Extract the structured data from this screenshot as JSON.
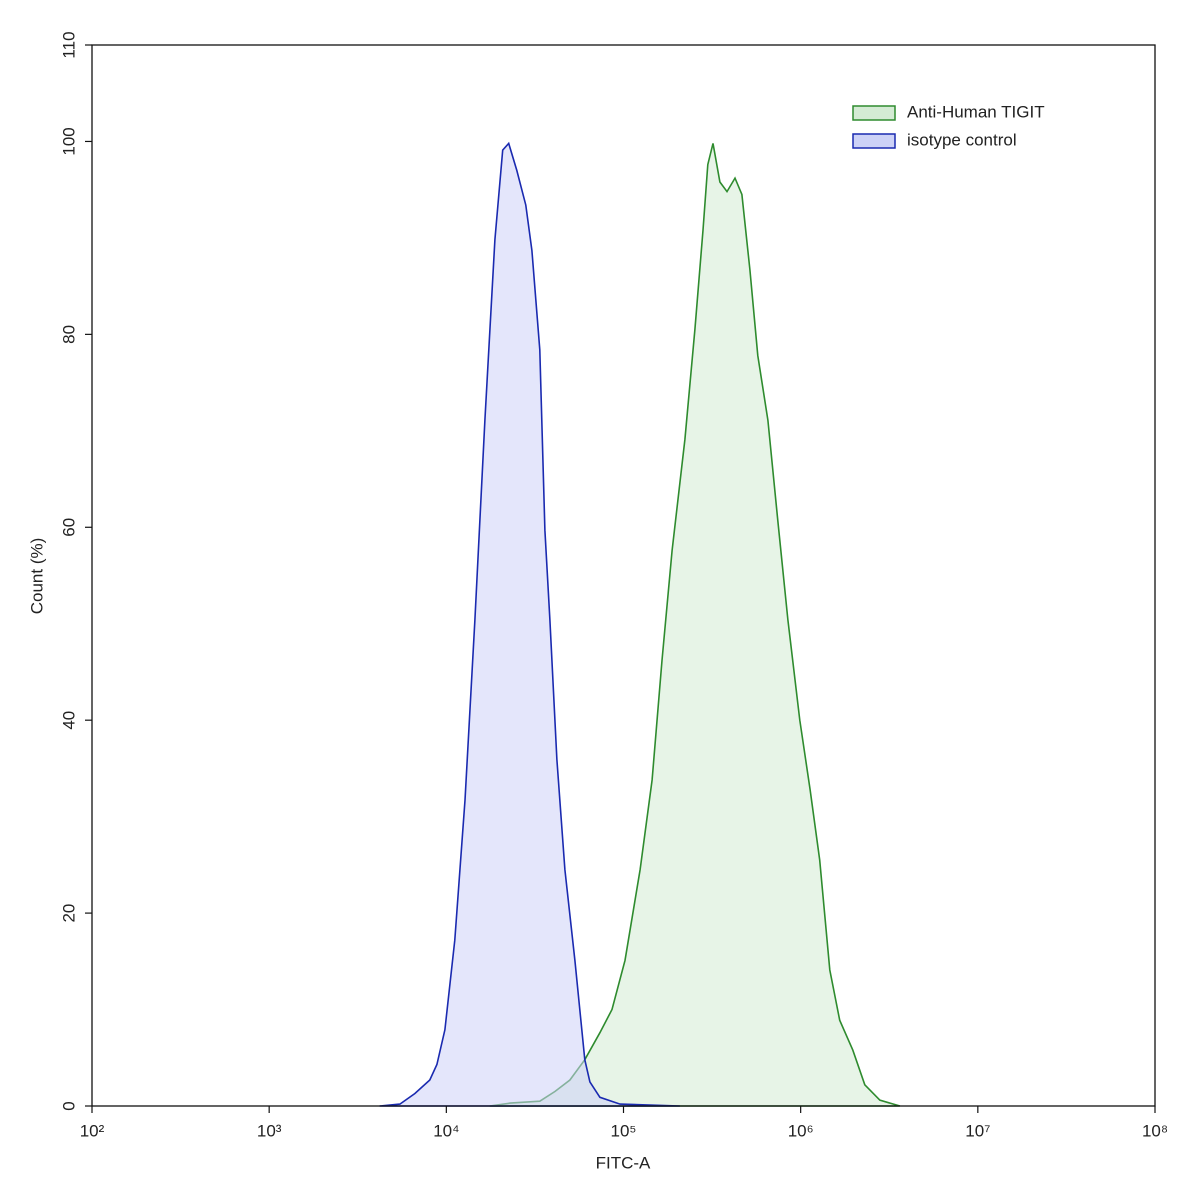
{
  "chart_data": {
    "type": "histogram-line",
    "x_label": "FITC-A",
    "y_label": "Count  (%)",
    "xscale": "log",
    "xlim": [
      100,
      100000000
    ],
    "ylim": [
      0,
      110
    ],
    "xticks": [
      {
        "value": 100,
        "label": "10²"
      },
      {
        "value": 1000,
        "label": "10³"
      },
      {
        "value": 10000,
        "label": "10⁴"
      },
      {
        "value": 100000,
        "label": "10⁵"
      },
      {
        "value": 1000000,
        "label": "10⁶"
      },
      {
        "value": 10000000,
        "label": "10⁷"
      },
      {
        "value": 100000000,
        "label": "10⁸"
      }
    ],
    "yticks": [
      0,
      20,
      40,
      60,
      80,
      100,
      110
    ],
    "legend": "top-right",
    "series": [
      {
        "name": "Anti-Human TIGIT",
        "color": "#2e8b2e",
        "fill": "#d4ebd4",
        "x": [
          17600,
          22900,
          33700,
          41000,
          49800,
          60500,
          73600,
          86100,
          102000,
          124000,
          145000,
          165000,
          188000,
          222000,
          253000,
          281000,
          299000,
          320000,
          350000,
          384000,
          426000,
          466000,
          517000,
          573000,
          653000,
          743000,
          847000,
          989000,
          1130000,
          1280000,
          1460000,
          1660000,
          1970000,
          2300000,
          2800000,
          3630000
        ],
        "values": [
          0,
          0.3,
          0.5,
          1.5,
          2.7,
          4.8,
          7.6,
          10,
          15.1,
          24.5,
          33.8,
          46.2,
          57.6,
          69.1,
          80.5,
          90.8,
          97.6,
          99.8,
          95.8,
          94.8,
          96.2,
          94.5,
          86.7,
          77.8,
          71.1,
          60.7,
          50.4,
          40,
          32.8,
          25.5,
          14.1,
          8.9,
          5.8,
          2.2,
          0.6,
          0
        ]
      },
      {
        "name": "isotype control",
        "color": "#1a2ab0",
        "fill": "#cdd2f7",
        "x": [
          4200,
          5470,
          6650,
          8070,
          8850,
          9820,
          11170,
          12740,
          14500,
          16500,
          18800,
          20800,
          22500,
          25000,
          28100,
          30400,
          33700,
          36000,
          38400,
          42100,
          46700,
          53200,
          60500,
          64600,
          73600,
          95500,
          208000
        ],
        "values": [
          0,
          0.2,
          1.3,
          2.7,
          4.3,
          7.9,
          17.2,
          31.7,
          50.4,
          71.1,
          89.8,
          99.1,
          99.8,
          97,
          93.4,
          88.7,
          78.4,
          59.7,
          50.4,
          35.9,
          24.5,
          15.1,
          4.8,
          2.5,
          0.9,
          0.2,
          0
        ]
      }
    ]
  }
}
